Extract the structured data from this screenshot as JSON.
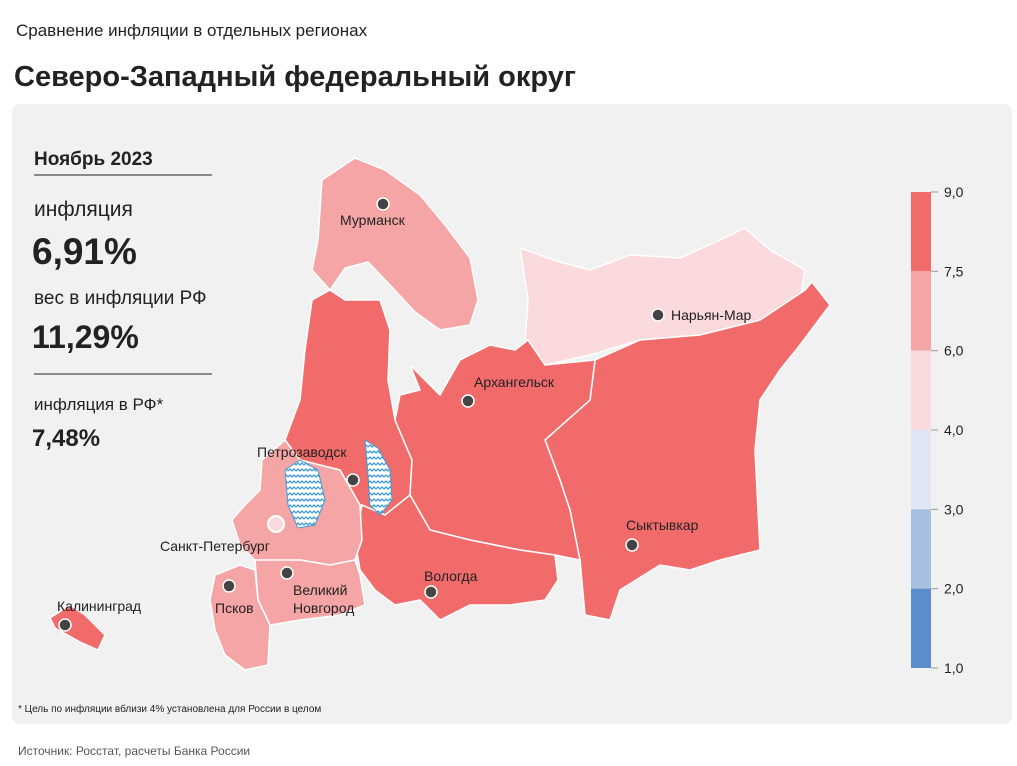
{
  "header": {
    "subtitle": "Сравнение инфляции в отдельных регионах",
    "title": "Северо-Западный федеральный округ"
  },
  "panel": {
    "period": "Ноябрь 2023",
    "inflation_label": "инфляция",
    "inflation_value": "6,91%",
    "weight_label": "вес в инфляции РФ",
    "weight_value": "11,29%",
    "rf_label": "инфляция в РФ*",
    "rf_value": "7,48%"
  },
  "cities": [
    "Мурманск",
    "Нарьян-Мар",
    "Архангельск",
    "Петрозаводск",
    "Сыктывкар",
    "Санкт-Петербург",
    "Вологда",
    "Великий\nНовгород",
    "Псков",
    "Калининград"
  ],
  "legend": {
    "ticks": [
      {
        "value": 9,
        "label": "9,0"
      },
      {
        "value": 7.5,
        "label": "7,5"
      },
      {
        "value": 6,
        "label": "6,0"
      },
      {
        "value": 4,
        "label": "4,0"
      },
      {
        "value": 3,
        "label": "3,0"
      },
      {
        "value": 2,
        "label": "2,0"
      },
      {
        "value": 1,
        "label": "1,0"
      }
    ],
    "colors": [
      "#f26b6b",
      "#f5a5a6",
      "#fadadd",
      "#dfe7f5",
      "#a6c0e2",
      "#5b8dcc"
    ]
  },
  "footnote": "* Цель по инфляции вблизи 4% установлена для России в целом",
  "source": "Источник: Росстат, расчеты Банка России"
}
